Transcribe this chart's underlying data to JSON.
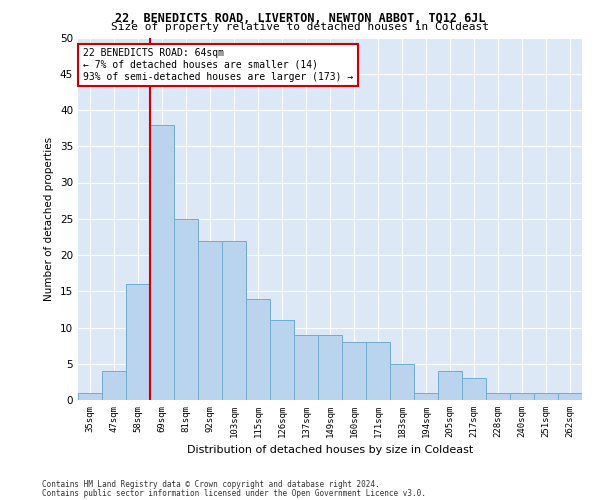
{
  "title": "22, BENEDICTS ROAD, LIVERTON, NEWTON ABBOT, TQ12 6JL",
  "subtitle": "Size of property relative to detached houses in Coldeast",
  "xlabel": "Distribution of detached houses by size in Coldeast",
  "ylabel": "Number of detached properties",
  "categories": [
    "35sqm",
    "47sqm",
    "58sqm",
    "69sqm",
    "81sqm",
    "92sqm",
    "103sqm",
    "115sqm",
    "126sqm",
    "137sqm",
    "149sqm",
    "160sqm",
    "171sqm",
    "183sqm",
    "194sqm",
    "205sqm",
    "217sqm",
    "228sqm",
    "240sqm",
    "251sqm",
    "262sqm"
  ],
  "values": [
    1,
    4,
    16,
    38,
    25,
    22,
    22,
    14,
    11,
    9,
    9,
    8,
    8,
    5,
    1,
    4,
    3,
    1,
    1,
    1,
    1
  ],
  "bar_color": "#bad4ee",
  "bar_edge_color": "#6baed6",
  "vline_color": "#cc0000",
  "annotation_text": "22 BENEDICTS ROAD: 64sqm\n← 7% of detached houses are smaller (14)\n93% of semi-detached houses are larger (173) →",
  "annotation_box_color": "#ffffff",
  "annotation_box_edge": "#cc0000",
  "ylim": [
    0,
    50
  ],
  "yticks": [
    0,
    5,
    10,
    15,
    20,
    25,
    30,
    35,
    40,
    45,
    50
  ],
  "background_color": "#dce8f5",
  "grid_color": "#ffffff",
  "fig_background": "#ffffff",
  "footer1": "Contains HM Land Registry data © Crown copyright and database right 2024.",
  "footer2": "Contains public sector information licensed under the Open Government Licence v3.0."
}
